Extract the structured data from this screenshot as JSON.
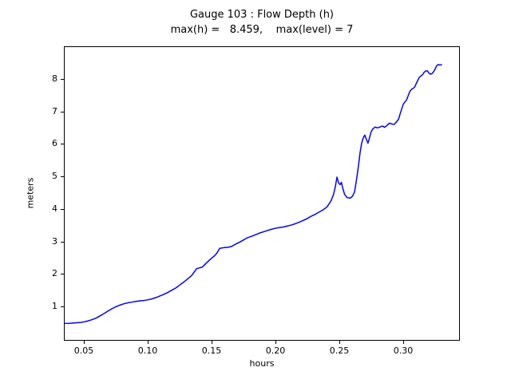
{
  "figure": {
    "title_line1": "Gauge 103 : Flow Depth (h)",
    "title_line2": "max(h) =   8.459,    max(level) = 7",
    "xlabel": "hours",
    "ylabel": "meters",
    "line_color": "#0000ff",
    "background_color": "#ffffff",
    "spine_color": "#000000"
  },
  "chart_data": {
    "type": "line",
    "title": "Gauge 103 : Flow Depth (h)",
    "subtitle": "max(h) =   8.459,    max(level) = 7",
    "xlabel": "hours",
    "ylabel": "meters",
    "xlim": [
      0.0344,
      0.3444
    ],
    "ylim": [
      -0.05,
      9.0
    ],
    "grid": false,
    "legend": null,
    "max_h": 8.459,
    "max_level": 7,
    "xticks": [
      {
        "label": "0.05",
        "value": 0.05
      },
      {
        "label": "0.10",
        "value": 0.1
      },
      {
        "label": "0.15",
        "value": 0.15
      },
      {
        "label": "0.20",
        "value": 0.2
      },
      {
        "label": "0.25",
        "value": 0.25
      },
      {
        "label": "0.30",
        "value": 0.3
      }
    ],
    "yticks": [
      {
        "label": "1",
        "value": 1
      },
      {
        "label": "2",
        "value": 2
      },
      {
        "label": "3",
        "value": 3
      },
      {
        "label": "4",
        "value": 4
      },
      {
        "label": "5",
        "value": 5
      },
      {
        "label": "6",
        "value": 6
      },
      {
        "label": "7",
        "value": 7
      },
      {
        "label": "8",
        "value": 8
      }
    ],
    "series": [
      {
        "name": "flow depth h",
        "color": "#0000ff",
        "line_width": 1.5,
        "points": [
          [
            0.0344,
            0.46
          ],
          [
            0.0375,
            0.46
          ],
          [
            0.0406,
            0.47
          ],
          [
            0.0438,
            0.48
          ],
          [
            0.0469,
            0.49
          ],
          [
            0.05,
            0.51
          ],
          [
            0.0531,
            0.54
          ],
          [
            0.0563,
            0.58
          ],
          [
            0.0594,
            0.63
          ],
          [
            0.0625,
            0.7
          ],
          [
            0.0656,
            0.77
          ],
          [
            0.0688,
            0.85
          ],
          [
            0.0719,
            0.92
          ],
          [
            0.075,
            0.98
          ],
          [
            0.0781,
            1.03
          ],
          [
            0.0813,
            1.07
          ],
          [
            0.0844,
            1.1
          ],
          [
            0.0875,
            1.12
          ],
          [
            0.0906,
            1.14
          ],
          [
            0.0938,
            1.16
          ],
          [
            0.0969,
            1.17
          ],
          [
            0.1,
            1.19
          ],
          [
            0.1031,
            1.22
          ],
          [
            0.1063,
            1.26
          ],
          [
            0.1094,
            1.31
          ],
          [
            0.1125,
            1.36
          ],
          [
            0.1156,
            1.42
          ],
          [
            0.1188,
            1.49
          ],
          [
            0.1219,
            1.56
          ],
          [
            0.125,
            1.65
          ],
          [
            0.1281,
            1.74
          ],
          [
            0.1313,
            1.84
          ],
          [
            0.1344,
            1.95
          ],
          [
            0.1363,
            2.05
          ],
          [
            0.1381,
            2.15
          ],
          [
            0.1406,
            2.18
          ],
          [
            0.1425,
            2.2
          ],
          [
            0.1456,
            2.32
          ],
          [
            0.1488,
            2.44
          ],
          [
            0.1519,
            2.54
          ],
          [
            0.1538,
            2.62
          ],
          [
            0.155,
            2.7
          ],
          [
            0.1563,
            2.78
          ],
          [
            0.1594,
            2.8
          ],
          [
            0.1625,
            2.81
          ],
          [
            0.1656,
            2.84
          ],
          [
            0.1688,
            2.91
          ],
          [
            0.1719,
            2.97
          ],
          [
            0.175,
            3.04
          ],
          [
            0.1781,
            3.11
          ],
          [
            0.1813,
            3.15
          ],
          [
            0.1844,
            3.2
          ],
          [
            0.1875,
            3.25
          ],
          [
            0.1906,
            3.29
          ],
          [
            0.1938,
            3.33
          ],
          [
            0.1969,
            3.37
          ],
          [
            0.2,
            3.4
          ],
          [
            0.2031,
            3.42
          ],
          [
            0.2063,
            3.44
          ],
          [
            0.2094,
            3.47
          ],
          [
            0.2125,
            3.5
          ],
          [
            0.2156,
            3.54
          ],
          [
            0.2188,
            3.59
          ],
          [
            0.2219,
            3.64
          ],
          [
            0.225,
            3.7
          ],
          [
            0.2281,
            3.77
          ],
          [
            0.2313,
            3.83
          ],
          [
            0.2344,
            3.9
          ],
          [
            0.2375,
            3.97
          ],
          [
            0.2406,
            4.06
          ],
          [
            0.2438,
            4.25
          ],
          [
            0.2458,
            4.45
          ],
          [
            0.2472,
            4.7
          ],
          [
            0.2484,
            4.98
          ],
          [
            0.2497,
            4.8
          ],
          [
            0.2509,
            4.75
          ],
          [
            0.2519,
            4.82
          ],
          [
            0.2531,
            4.62
          ],
          [
            0.2544,
            4.45
          ],
          [
            0.2563,
            4.35
          ],
          [
            0.2588,
            4.33
          ],
          [
            0.2606,
            4.39
          ],
          [
            0.2622,
            4.52
          ],
          [
            0.2638,
            4.9
          ],
          [
            0.2652,
            5.3
          ],
          [
            0.2665,
            5.72
          ],
          [
            0.2678,
            6.02
          ],
          [
            0.2691,
            6.2
          ],
          [
            0.2703,
            6.28
          ],
          [
            0.2716,
            6.14
          ],
          [
            0.2728,
            6.03
          ],
          [
            0.2741,
            6.21
          ],
          [
            0.2753,
            6.38
          ],
          [
            0.2766,
            6.47
          ],
          [
            0.2784,
            6.53
          ],
          [
            0.2803,
            6.5
          ],
          [
            0.2822,
            6.53
          ],
          [
            0.2841,
            6.56
          ],
          [
            0.2859,
            6.52
          ],
          [
            0.2878,
            6.58
          ],
          [
            0.2897,
            6.65
          ],
          [
            0.2916,
            6.62
          ],
          [
            0.2934,
            6.61
          ],
          [
            0.2953,
            6.69
          ],
          [
            0.2969,
            6.78
          ],
          [
            0.2981,
            6.94
          ],
          [
            0.2994,
            7.1
          ],
          [
            0.3006,
            7.24
          ],
          [
            0.3019,
            7.31
          ],
          [
            0.3031,
            7.36
          ],
          [
            0.3044,
            7.5
          ],
          [
            0.3056,
            7.62
          ],
          [
            0.3069,
            7.69
          ],
          [
            0.3081,
            7.72
          ],
          [
            0.3094,
            7.76
          ],
          [
            0.3106,
            7.86
          ],
          [
            0.3119,
            7.97
          ],
          [
            0.3131,
            8.06
          ],
          [
            0.3144,
            8.11
          ],
          [
            0.3156,
            8.14
          ],
          [
            0.3169,
            8.22
          ],
          [
            0.3181,
            8.26
          ],
          [
            0.3194,
            8.27
          ],
          [
            0.3206,
            8.2
          ],
          [
            0.3219,
            8.16
          ],
          [
            0.3231,
            8.18
          ],
          [
            0.3244,
            8.24
          ],
          [
            0.3256,
            8.32
          ],
          [
            0.3269,
            8.43
          ],
          [
            0.3281,
            8.46
          ],
          [
            0.3294,
            8.44
          ],
          [
            0.3306,
            8.46
          ]
        ]
      }
    ]
  }
}
